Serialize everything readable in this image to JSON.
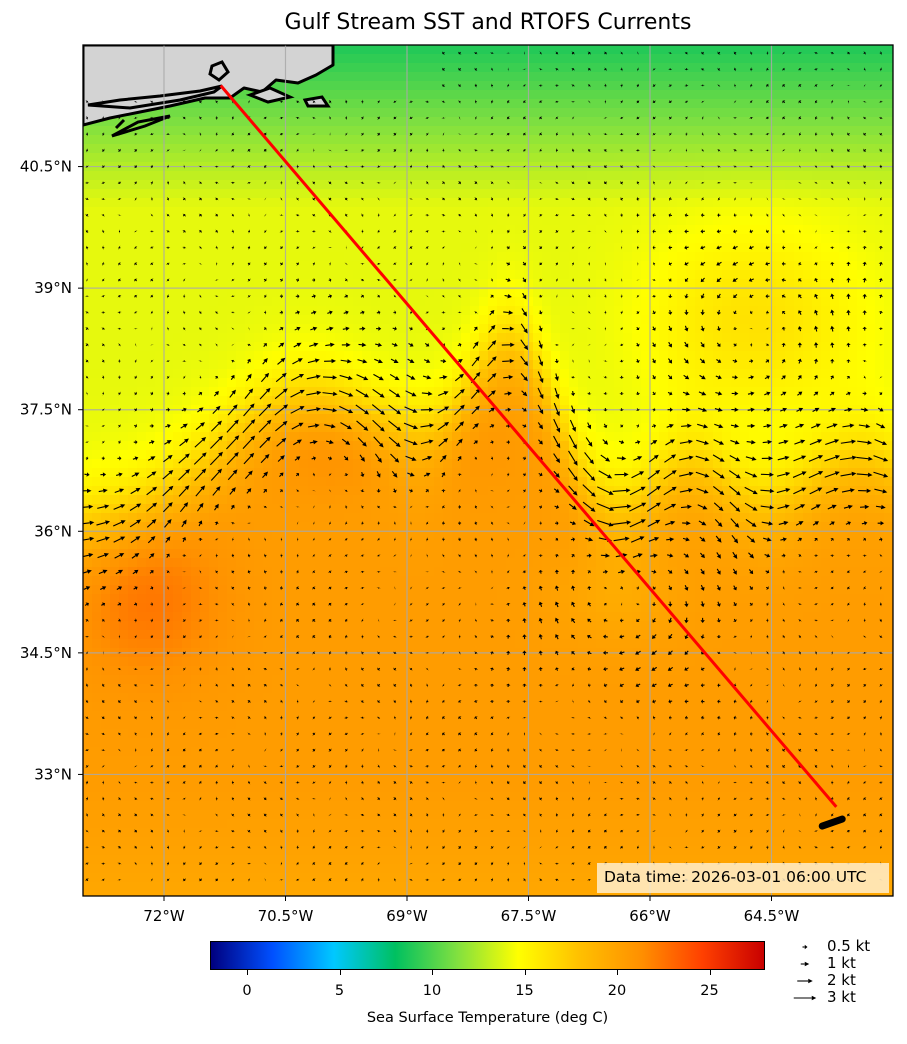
{
  "title": "Gulf Stream SST and RTOFS Currents",
  "map": {
    "extent": {
      "lon_min": -73.0,
      "lon_max": -63.0,
      "lat_min": 31.5,
      "lat_max": 42.0
    },
    "lon_ticks": [
      {
        "value": -72.0,
        "label": "72°W"
      },
      {
        "value": -70.5,
        "label": "70.5°W"
      },
      {
        "value": -69.0,
        "label": "69°W"
      },
      {
        "value": -67.5,
        "label": "67.5°W"
      },
      {
        "value": -66.0,
        "label": "66°W"
      },
      {
        "value": -64.5,
        "label": "64.5°W"
      }
    ],
    "lat_ticks": [
      {
        "value": 40.5,
        "label": "40.5°N"
      },
      {
        "value": 39.0,
        "label": "39°N"
      },
      {
        "value": 37.5,
        "label": "37.5°N"
      },
      {
        "value": 36.0,
        "label": "36°N"
      },
      {
        "value": 34.5,
        "label": "34.5°N"
      },
      {
        "value": 33.0,
        "label": "33°N"
      }
    ],
    "gridlines": true,
    "land_color": "#d3d3d3",
    "track": {
      "color": "#ff0000",
      "start": {
        "lon": -71.3,
        "lat": 41.5
      },
      "end": {
        "lon": -63.7,
        "lat": 32.6
      }
    },
    "destination_marker": {
      "lon": -63.75,
      "lat": 32.4
    }
  },
  "data_time": "Data time: 2026-03-01 06:00 UTC",
  "colorbar": {
    "vmin": -2,
    "vmax": 28,
    "ticks": [
      0,
      5,
      10,
      15,
      20,
      25
    ],
    "label": "Sea Surface Temperature (deg C)",
    "colormap": [
      "#00007f",
      "#0050ff",
      "#00c8ff",
      "#00c060",
      "#80e040",
      "#ffff00",
      "#ffc000",
      "#ff9000",
      "#ff4000",
      "#c80000"
    ]
  },
  "quiver_key": [
    {
      "label": "0.5 kt",
      "speed": 0.5
    },
    {
      "label": "1 kt",
      "speed": 1
    },
    {
      "label": "2 kt",
      "speed": 2
    },
    {
      "label": "3 kt",
      "speed": 3
    }
  ]
}
